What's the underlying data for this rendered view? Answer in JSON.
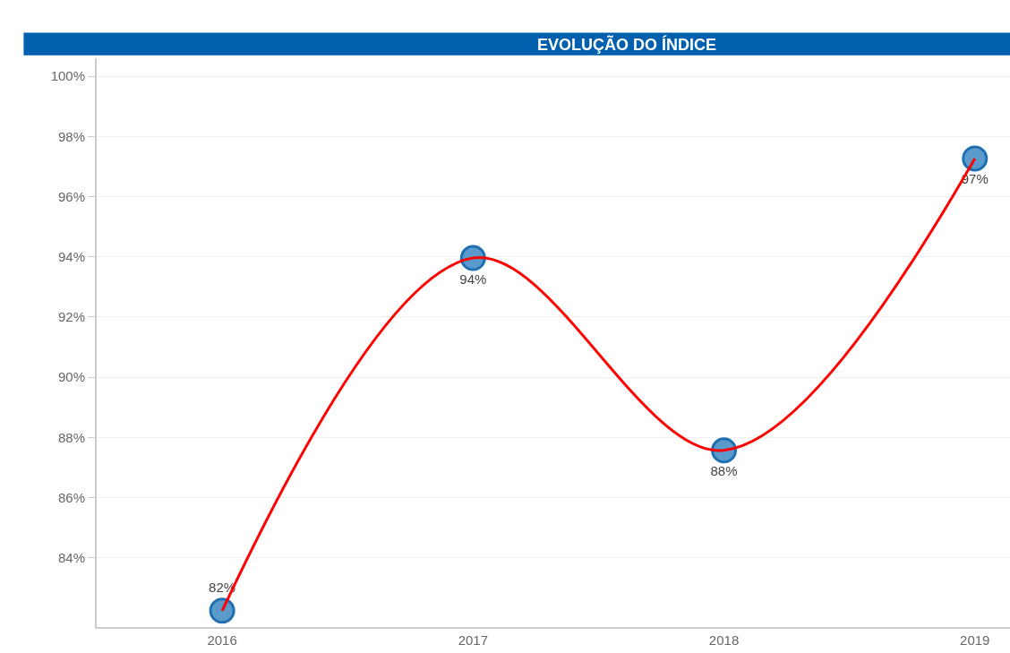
{
  "chart_data": {
    "type": "line",
    "title": "EVOLUÇÃO DO ÍNDICE",
    "categories": [
      "2016",
      "2017",
      "2018",
      "2019"
    ],
    "series": [
      {
        "type": "scatter",
        "color": "#5b9bcb",
        "values": [
          82.24,
          93.96,
          87.57,
          97.27
        ],
        "value_labels": [
          "82%",
          "94%",
          "88%",
          "97%"
        ],
        "marker": "circle"
      },
      {
        "color": "#ff0000",
        "values": [
          82.24,
          93.96,
          87.57,
          97.27
        ],
        "line_style": "solid",
        "marker": "none"
      }
    ],
    "ylim": [
      81.7,
      100.6
    ],
    "yticks": [
      {
        "value": 84,
        "label": "84%"
      },
      {
        "value": 86,
        "label": "86%"
      },
      {
        "value": 88,
        "label": "88%"
      },
      {
        "value": 90,
        "label": "90%"
      },
      {
        "value": 92,
        "label": "92%"
      },
      {
        "value": 94,
        "label": "94%"
      },
      {
        "value": 96,
        "label": "96%"
      },
      {
        "value": 98,
        "label": "98%"
      },
      {
        "value": 100,
        "label": "100%"
      }
    ],
    "grid": "y"
  }
}
